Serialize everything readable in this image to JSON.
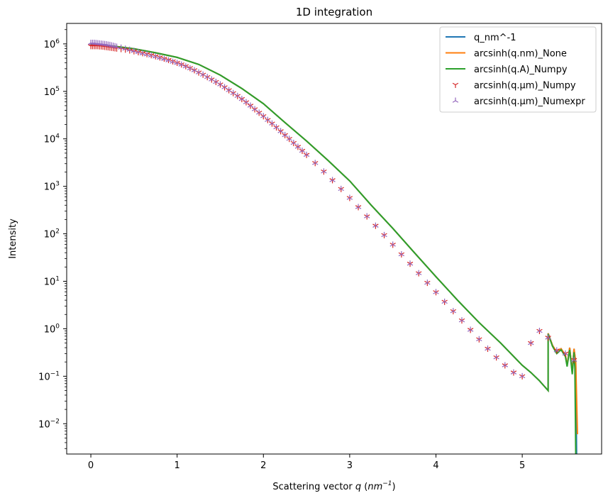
{
  "chart_data": {
    "type": "line",
    "title": "1D integration",
    "xlabel": "Scattering vector q (nm^-1)",
    "ylabel": "Intensity",
    "yscale": "log",
    "xlim": [
      -0.28,
      5.92
    ],
    "ylim": [
      0.0023,
      2700000
    ],
    "x_ticks": [
      0,
      1,
      2,
      3,
      4,
      5
    ],
    "x_tick_labels": [
      "0",
      "1",
      "2",
      "3",
      "4",
      "5"
    ],
    "y_ticks": [
      0.01,
      0.1,
      1,
      10,
      100,
      1000,
      10000,
      100000,
      1000000
    ],
    "y_tick_labels": [
      "10^-2",
      "10^-1",
      "10^0",
      "10^1",
      "10^2",
      "10^3",
      "10^4",
      "10^5",
      "10^6"
    ],
    "legend_position": "top-right",
    "grid": false,
    "x": [
      0.0,
      0.25,
      0.5,
      0.75,
      1.0,
      1.25,
      1.5,
      1.75,
      2.0,
      2.25,
      2.5,
      2.75,
      3.0,
      3.25,
      3.5,
      3.75,
      4.0,
      4.25,
      4.5,
      4.75,
      5.0,
      5.1,
      5.2,
      5.3,
      5.35,
      5.4,
      5.45,
      5.5,
      5.55,
      5.6
    ],
    "series": [
      {
        "name": "q_nm^-1",
        "color": "#1f77b4",
        "marker": "line",
        "values": [
          1000000,
          900000,
          790000,
          650000,
          520000,
          370000,
          220000,
          115000,
          55000,
          22000,
          9000,
          3500,
          1300,
          400,
          130,
          40,
          12.5,
          4,
          1.35,
          0.5,
          0.17,
          0.12,
          0.08,
          0.05,
          0.04,
          0.03,
          0.025,
          0.02,
          0.015,
          0.012
        ],
        "tail_x": [
          5.3,
          5.35,
          5.4,
          5.45,
          5.5,
          5.52,
          5.55,
          5.58,
          5.6,
          5.62,
          5.63
        ],
        "tail_values": [
          0.8,
          0.45,
          0.32,
          0.38,
          0.28,
          0.17,
          0.4,
          0.12,
          0.38,
          0.2,
          0.0023
        ]
      },
      {
        "name": "arcsinh(q.nm)_None",
        "color": "#ff7f0e",
        "marker": "line",
        "values": [
          1000000,
          900000,
          790000,
          650000,
          520000,
          370000,
          220000,
          115000,
          55000,
          22000,
          9000,
          3500,
          1300,
          400,
          130,
          40,
          12.5,
          4,
          1.35,
          0.5,
          0.17,
          0.12,
          0.08,
          0.05,
          0.04,
          0.03,
          0.025,
          0.02,
          0.015,
          0.012
        ],
        "tail_x": [
          5.3,
          5.35,
          5.4,
          5.45,
          5.5,
          5.52,
          5.55,
          5.58,
          5.6,
          5.62,
          5.64
        ],
        "tail_values": [
          0.8,
          0.45,
          0.32,
          0.38,
          0.28,
          0.17,
          0.4,
          0.12,
          0.38,
          0.2,
          0.006
        ]
      },
      {
        "name": "arcsinh(q.A)_Numpy",
        "color": "#2ca02c",
        "marker": "line",
        "values": [
          1000000,
          900000,
          790000,
          650000,
          520000,
          370000,
          220000,
          115000,
          55000,
          22000,
          9000,
          3500,
          1300,
          400,
          130,
          40,
          12.5,
          4,
          1.35,
          0.5,
          0.17,
          0.12,
          0.08,
          0.05,
          0.04,
          0.03,
          0.025,
          0.02,
          0.015,
          0.012
        ],
        "tail_x": [
          5.3,
          5.35,
          5.4,
          5.45,
          5.5,
          5.52,
          5.55,
          5.58,
          5.6,
          5.61,
          5.62
        ],
        "tail_values": [
          0.78,
          0.43,
          0.3,
          0.36,
          0.26,
          0.16,
          0.36,
          0.11,
          0.32,
          0.15,
          0.0023
        ]
      },
      {
        "name": "arcsinh(q.μm)_Numpy",
        "color": "#d62728",
        "marker": "tri_down"
      },
      {
        "name": "arcsinh(q.μm)_Numexpr",
        "color": "#9467bd",
        "marker": "tri_up"
      }
    ],
    "markers_x": [
      0.0,
      0.02,
      0.04,
      0.06,
      0.08,
      0.1,
      0.12,
      0.14,
      0.16,
      0.18,
      0.2,
      0.22,
      0.24,
      0.26,
      0.28,
      0.3,
      0.35,
      0.4,
      0.45,
      0.5,
      0.55,
      0.6,
      0.65,
      0.7,
      0.75,
      0.8,
      0.85,
      0.9,
      0.95,
      1.0,
      1.05,
      1.1,
      1.15,
      1.2,
      1.25,
      1.3,
      1.35,
      1.4,
      1.45,
      1.5,
      1.55,
      1.6,
      1.65,
      1.7,
      1.75,
      1.8,
      1.85,
      1.9,
      1.95,
      2.0,
      2.05,
      2.1,
      2.15,
      2.2,
      2.25,
      2.3,
      2.35,
      2.4,
      2.45,
      2.5,
      2.6,
      2.7,
      2.8,
      2.9,
      3.0,
      3.1,
      3.2,
      3.3,
      3.4,
      3.5,
      3.6,
      3.7,
      3.8,
      3.9,
      4.0,
      4.1,
      4.2,
      4.3,
      4.4,
      4.5,
      4.6,
      4.7,
      4.8,
      4.9,
      5.0,
      5.1,
      5.2,
      5.3,
      5.4,
      5.5,
      5.6
    ],
    "markers_numpy_values": [
      900000,
      900000,
      900000,
      900000,
      900000,
      890000,
      890000,
      880000,
      870000,
      860000,
      850000,
      840000,
      830000,
      820000,
      810000,
      800000,
      780000,
      760000,
      730000,
      700000,
      670000,
      640000,
      610000,
      580000,
      550000,
      520000,
      490000,
      460000,
      430000,
      400000,
      370000,
      340000,
      310000,
      280000,
      250000,
      225000,
      200000,
      178000,
      158000,
      140000,
      122000,
      106000,
      92000,
      80000,
      69000,
      59000,
      50000,
      42000,
      35500,
      30000,
      25000,
      21000,
      17500,
      14500,
      12000,
      10000,
      8200,
      6800,
      5600,
      4600,
      3100,
      2050,
      1350,
      880,
      570,
      365,
      233,
      148,
      94,
      59,
      37,
      23.5,
      14.8,
      9.3,
      5.9,
      3.7,
      2.35,
      1.5,
      0.95,
      0.6,
      0.38,
      0.25,
      0.17,
      0.12,
      0.1,
      0.5,
      0.9,
      0.65,
      0.35,
      0.3,
      0.22
    ],
    "markers_numexpr_values": [
      1050000,
      1050000,
      1050000,
      1040000,
      1030000,
      1020000,
      1010000,
      1000000,
      990000,
      980000,
      960000,
      950000,
      930000,
      910000,
      890000,
      870000,
      830000,
      790000,
      750000,
      710000,
      670000,
      630000,
      600000,
      570000,
      540000,
      510000,
      480000,
      450000,
      420000,
      395000,
      365000,
      335000,
      305000,
      278000,
      250000,
      225000,
      200000,
      178000,
      158000,
      140000,
      122000,
      106000,
      92000,
      80000,
      69000,
      59000,
      50000,
      42000,
      35500,
      30000,
      25000,
      21000,
      17500,
      14500,
      12000,
      10000,
      8200,
      6800,
      5600,
      4600,
      3100,
      2050,
      1350,
      880,
      570,
      365,
      233,
      148,
      94,
      59,
      37,
      23.5,
      14.8,
      9.3,
      5.9,
      3.7,
      2.35,
      1.5,
      0.95,
      0.6,
      0.38,
      0.25,
      0.17,
      0.12,
      0.1,
      0.5,
      0.9,
      0.65,
      0.35,
      0.3,
      0.22
    ]
  }
}
